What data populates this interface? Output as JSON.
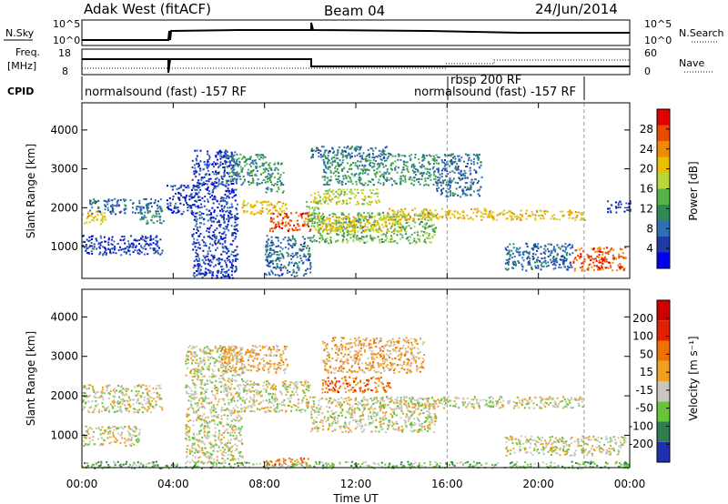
{
  "header": {
    "station": "Adak West (fitACF)",
    "beam": "Beam 04",
    "date": "24/Jun/2014"
  },
  "panels": {
    "nsky_label": "N.Sky",
    "nsky_ticks": [
      "10^5",
      "10^0"
    ],
    "nsearch_label": "N.Search",
    "nsearch_ticks": [
      "10^5",
      "10^0"
    ],
    "freq_label_top": "Freq.",
    "freq_label_bottom": "[MHz]",
    "freq_ticks": [
      "18",
      "8"
    ],
    "nave_label": "Nave",
    "nave_ticks": [
      "60",
      "0"
    ],
    "cpid_label": "CPID",
    "cpid_items": [
      {
        "text": "normalsound (fast) -157 RF",
        "start": "00:00"
      },
      {
        "text": "rbsp 200 RF",
        "start": "16:00"
      },
      {
        "text": "normalsound (fast) -157 RF",
        "start": "18:00"
      }
    ]
  },
  "power_colorbar": {
    "label": "Power [dB]",
    "ticks": [
      "28",
      "24",
      "20",
      "16",
      "12",
      "8",
      "4"
    ],
    "colors": [
      "#0000ee",
      "#1e3aa8",
      "#2f6fb8",
      "#2e8b57",
      "#55b54a",
      "#b8d83a",
      "#e8c000",
      "#f08a00",
      "#e84a00",
      "#e00000"
    ]
  },
  "velocity_colorbar": {
    "label": "Velocity [m s⁻¹]",
    "ticks": [
      "200",
      "100",
      "50",
      "15",
      "-15",
      "-50",
      "-100",
      "-200"
    ],
    "colors": [
      "#1f2fb0",
      "#2e7d4f",
      "#66c33a",
      "#c8c8c0",
      "#f0a020",
      "#f07000",
      "#e02000",
      "#d00000"
    ]
  },
  "chart_data": {
    "type": "heatmap",
    "x_axis": {
      "label": "Time UT",
      "range": [
        "00:00",
        "24:00"
      ],
      "ticks": [
        "00:00",
        "04:00",
        "08:00",
        "12:00",
        "16:00",
        "20:00",
        "00:00"
      ]
    },
    "y_axis": {
      "label": "Slant Range [km]",
      "range": [
        180,
        4700
      ],
      "ticks": [
        1000,
        2000,
        3000,
        4000
      ]
    },
    "time_markers_ut": [
      16,
      22
    ],
    "power_bands": [
      {
        "t": [
          0.0,
          1.0
        ],
        "range": [
          1600,
          1950
        ],
        "level": 6
      },
      {
        "t": [
          0.3,
          3.5
        ],
        "range": [
          1850,
          2250
        ],
        "level": 2
      },
      {
        "t": [
          0.0,
          3.5
        ],
        "range": [
          800,
          1300
        ],
        "level": 1
      },
      {
        "t": [
          2.5,
          3.6
        ],
        "range": [
          1600,
          1900
        ],
        "level": 3
      },
      {
        "t": [
          3.7,
          5.0
        ],
        "range": [
          1850,
          2600
        ],
        "level": 1
      },
      {
        "t": [
          4.8,
          6.8
        ],
        "range": [
          200,
          3500
        ],
        "level": 1
      },
      {
        "t": [
          6.2,
          8.0
        ],
        "range": [
          2600,
          3400
        ],
        "level": 3
      },
      {
        "t": [
          8.0,
          8.8
        ],
        "range": [
          2400,
          3200
        ],
        "level": 3
      },
      {
        "t": [
          7.0,
          9.0
        ],
        "range": [
          1850,
          2200
        ],
        "level": 6
      },
      {
        "t": [
          8.2,
          10.0
        ],
        "range": [
          1400,
          1900
        ],
        "level": 8
      },
      {
        "t": [
          9.8,
          10.4
        ],
        "range": [
          1600,
          2200
        ],
        "level": 4
      },
      {
        "t": [
          8.0,
          10.0
        ],
        "range": [
          250,
          1300
        ],
        "level": 2
      },
      {
        "t": [
          10.0,
          15.5
        ],
        "range": [
          1100,
          1900
        ],
        "level": 4
      },
      {
        "t": [
          10.2,
          14.0
        ],
        "range": [
          1400,
          1800
        ],
        "level": 6
      },
      {
        "t": [
          10.0,
          13.0
        ],
        "range": [
          2100,
          2500
        ],
        "level": 5
      },
      {
        "t": [
          10.5,
          15.5
        ],
        "range": [
          2600,
          3400
        ],
        "level": 3
      },
      {
        "t": [
          10.0,
          13.5
        ],
        "range": [
          3300,
          3600
        ],
        "level": 2
      },
      {
        "t": [
          13.0,
          18.0
        ],
        "range": [
          1700,
          2000
        ],
        "level": 6
      },
      {
        "t": [
          15.5,
          17.5
        ],
        "range": [
          2300,
          3400
        ],
        "level": 2
      },
      {
        "t": [
          17.8,
          22.0
        ],
        "range": [
          1700,
          1950
        ],
        "level": 6
      },
      {
        "t": [
          18.5,
          21.5
        ],
        "range": [
          400,
          1100
        ],
        "level": 2
      },
      {
        "t": [
          21.5,
          23.8
        ],
        "range": [
          400,
          1000
        ],
        "level": 8
      },
      {
        "t": [
          23.0,
          24.0
        ],
        "range": [
          1900,
          2200
        ],
        "level": 1
      }
    ],
    "velocity_bands": [
      {
        "t": [
          0.0,
          3.5
        ],
        "range": [
          1600,
          2300
        ],
        "level": 3
      },
      {
        "t": [
          0.0,
          2.5
        ],
        "range": [
          750,
          1250
        ],
        "level": 3
      },
      {
        "t": [
          4.5,
          7.0
        ],
        "range": [
          300,
          3300
        ],
        "level": 3
      },
      {
        "t": [
          7.0,
          10.0
        ],
        "range": [
          1600,
          2400
        ],
        "level": 3
      },
      {
        "t": [
          6.0,
          9.0
        ],
        "range": [
          2600,
          3300
        ],
        "level": 4
      },
      {
        "t": [
          8.0,
          10.0
        ],
        "range": [
          250,
          450
        ],
        "level": 5
      },
      {
        "t": [
          10.0,
          15.5
        ],
        "range": [
          1100,
          2000
        ],
        "level": 3
      },
      {
        "t": [
          10.5,
          15.0
        ],
        "range": [
          2600,
          3500
        ],
        "level": 4
      },
      {
        "t": [
          10.5,
          13.5
        ],
        "range": [
          2100,
          2500
        ],
        "level": 5
      },
      {
        "t": [
          13.0,
          18.0
        ],
        "range": [
          1700,
          2000
        ],
        "level": 3
      },
      {
        "t": [
          17.8,
          22.0
        ],
        "range": [
          1700,
          2000
        ],
        "level": 3
      },
      {
        "t": [
          18.5,
          23.8
        ],
        "range": [
          500,
          1000
        ],
        "level": 3
      },
      {
        "t": [
          0.0,
          24.0
        ],
        "range": [
          180,
          350
        ],
        "level": 2
      }
    ]
  }
}
